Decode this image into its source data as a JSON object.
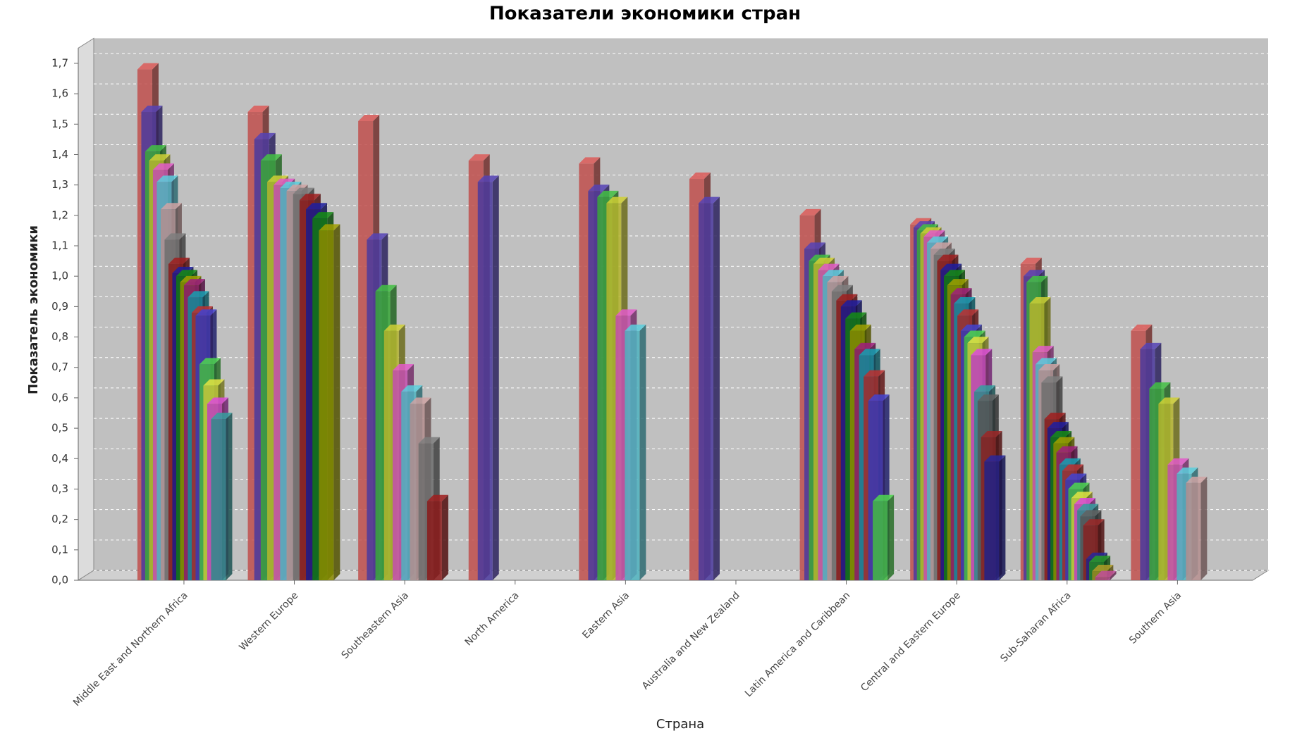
{
  "chart_data": {
    "type": "bar3d",
    "title": "Показатели экономики стран",
    "x_label": "Страна",
    "y_label": "Показатель экономики",
    "categories": [
      "Middle East and Northern Africa",
      "Western Europe",
      "Southeastern Asia",
      "North America",
      "Eastern Asia",
      "Australia and New Zealand",
      "Latin America and Caribbean",
      "Central and Eastern Europe",
      "Sub-Saharan Africa",
      "Southern Asia"
    ],
    "values": [
      [
        1.68,
        1.54,
        1.41,
        1.38,
        1.35,
        1.31,
        1.22,
        1.12,
        1.04,
        1.01,
        1.0,
        0.98,
        0.97,
        0.93,
        0.88,
        0.87,
        0.71,
        0.64,
        0.58,
        0.53
      ],
      [
        1.54,
        1.45,
        1.38,
        1.31,
        1.3,
        1.29,
        1.28,
        1.27,
        1.25,
        1.22,
        1.19,
        1.15
      ],
      [
        1.51,
        1.12,
        0.95,
        0.82,
        0.69,
        0.62,
        0.58,
        0.45,
        0.26
      ],
      [
        1.38,
        1.31
      ],
      [
        1.37,
        1.28,
        1.26,
        1.24,
        0.87,
        0.82
      ],
      [
        1.32,
        1.24
      ],
      [
        1.2,
        1.09,
        1.05,
        1.04,
        1.02,
        1.0,
        0.98,
        0.95,
        0.92,
        0.9,
        0.86,
        0.82,
        0.76,
        0.74,
        0.67,
        0.59,
        0.26
      ],
      [
        1.17,
        1.16,
        1.15,
        1.14,
        1.13,
        1.11,
        1.09,
        1.07,
        1.05,
        1.02,
        1.0,
        0.97,
        0.94,
        0.91,
        0.87,
        0.82,
        0.8,
        0.78,
        0.74,
        0.62,
        0.59,
        0.47,
        0.39
      ],
      [
        1.04,
        1.0,
        0.98,
        0.91,
        0.75,
        0.71,
        0.69,
        0.65,
        0.53,
        0.5,
        0.47,
        0.45,
        0.42,
        0.38,
        0.36,
        0.33,
        0.3,
        0.27,
        0.25,
        0.23,
        0.21,
        0.18,
        0.07,
        0.06,
        0.03,
        0.01
      ],
      [
        0.82,
        0.76,
        0.63,
        0.58,
        0.38,
        0.35,
        0.32
      ]
    ],
    "palette": [
      "#c0504d",
      "#4b3a9e",
      "#3aa83a",
      "#b5b52e",
      "#c54fb0",
      "#4fb4c0",
      "#b58f8f",
      "#6e6e6e",
      "#8b1a1a",
      "#1a1a8b",
      "#117a11",
      "#8b8b00",
      "#8b1a6e",
      "#138b9b",
      "#a52a2a",
      "#3a3ab5",
      "#44bb44",
      "#c6c63a",
      "#c040c0",
      "#2e8b8b",
      "#555555",
      "#882222",
      "#222288",
      "#228822",
      "#998822",
      "#aa4488"
    ],
    "ylim": [
      0,
      1.75
    ],
    "yticks": [
      {
        "value": 0,
        "label": "0,0"
      },
      {
        "value": 0.1,
        "label": "0,1"
      },
      {
        "value": 0.2,
        "label": "0,2"
      },
      {
        "value": 0.3,
        "label": "0,3"
      },
      {
        "value": 0.4,
        "label": "0,4"
      },
      {
        "value": 0.5,
        "label": "0,5"
      },
      {
        "value": 0.6,
        "label": "0,6"
      },
      {
        "value": 0.7,
        "label": "0,7"
      },
      {
        "value": 0.8,
        "label": "0,8"
      },
      {
        "value": 0.9,
        "label": "0,9"
      },
      {
        "value": 1.0,
        "label": "1,0"
      },
      {
        "value": 1.1,
        "label": "1,1"
      },
      {
        "value": 1.2,
        "label": "1,2"
      },
      {
        "value": 1.3,
        "label": "1,3"
      },
      {
        "value": 1.4,
        "label": "1,4"
      },
      {
        "value": 1.5,
        "label": "1,5"
      },
      {
        "value": 1.6,
        "label": "1,6"
      },
      {
        "value": 1.7,
        "label": "1,7"
      }
    ],
    "grid": true
  }
}
